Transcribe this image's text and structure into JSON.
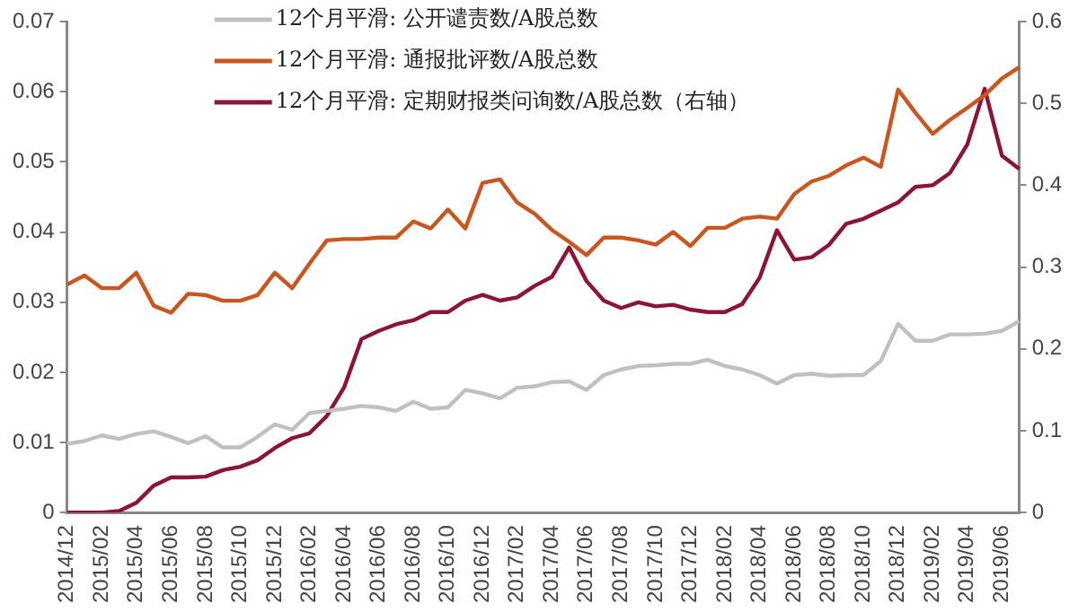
{
  "chart_data": {
    "type": "line",
    "categories": [
      "2014/12",
      null,
      "2015/02",
      null,
      "2015/04",
      null,
      "2015/06",
      null,
      "2015/08",
      null,
      "2015/10",
      null,
      "2015/12",
      null,
      "2016/02",
      null,
      "2016/04",
      null,
      "2016/06",
      null,
      "2016/08",
      null,
      "2016/10",
      null,
      "2016/12",
      null,
      "2017/02",
      null,
      "2017/04",
      null,
      "2017/06",
      null,
      "2017/08",
      null,
      "2017/10",
      null,
      "2017/12",
      null,
      "2018/02",
      null,
      "2018/04",
      null,
      "2018/06",
      null,
      "2018/08",
      null,
      "2018/10",
      null,
      "2018/12",
      null,
      "2019/02",
      null,
      "2019/04",
      null,
      "2019/06",
      null
    ],
    "series": [
      {
        "name": "12个月平滑: 公开谴责数/A股总数",
        "color": "#c0c0c0",
        "values": [
          0.0098,
          0.0102,
          0.011,
          0.0105,
          0.0112,
          0.0116,
          0.0108,
          0.0099,
          0.0109,
          0.0093,
          0.0093,
          0.0108,
          0.0126,
          0.0118,
          0.0142,
          0.0145,
          0.0148,
          0.0152,
          0.015,
          0.0145,
          0.0158,
          0.0148,
          0.015,
          0.0175,
          0.017,
          0.0163,
          0.0178,
          0.018,
          0.0186,
          0.0187,
          0.0175,
          0.0196,
          0.0204,
          0.0209,
          0.021,
          0.0212,
          0.0212,
          0.0218,
          0.0209,
          0.0204,
          0.0196,
          0.0184,
          0.0196,
          0.0198,
          0.0195,
          0.0196,
          0.0196,
          0.0216,
          0.0269,
          0.0245,
          0.0245,
          0.0254,
          0.0254,
          0.0255,
          0.0259,
          0.0273
        ]
      },
      {
        "name": "12个月平滑: 通报批评数/A股总数",
        "color": "#c8561e",
        "values": [
          0.0325,
          0.0338,
          0.032,
          0.032,
          0.0342,
          0.0295,
          0.0285,
          0.0312,
          0.031,
          0.0302,
          0.0302,
          0.031,
          0.0342,
          0.032,
          0.0355,
          0.0388,
          0.039,
          0.039,
          0.0392,
          0.0392,
          0.0415,
          0.0405,
          0.0432,
          0.0405,
          0.047,
          0.0475,
          0.0442,
          0.0426,
          0.0403,
          0.0386,
          0.0367,
          0.0392,
          0.0392,
          0.0388,
          0.0382,
          0.04,
          0.038,
          0.0406,
          0.0406,
          0.0419,
          0.0422,
          0.0419,
          0.0454,
          0.0472,
          0.048,
          0.0495,
          0.0506,
          0.0493,
          0.0603,
          0.057,
          0.054,
          0.056,
          0.0577,
          0.0595,
          0.0619,
          0.0635
        ]
      },
      {
        "name": "12个月平滑: 定期财报类问询数/A股总数（右轴）",
        "color": "#8b1538",
        "axis": "y2",
        "values": [
          0,
          0,
          0,
          0.002,
          0.012,
          0.033,
          0.043,
          0.043,
          0.044,
          0.052,
          0.056,
          0.064,
          0.079,
          0.091,
          0.097,
          0.118,
          0.153,
          0.212,
          0.222,
          0.23,
          0.235,
          0.245,
          0.245,
          0.259,
          0.266,
          0.259,
          0.263,
          0.277,
          0.288,
          0.324,
          0.283,
          0.259,
          0.25,
          0.257,
          0.252,
          0.254,
          0.248,
          0.245,
          0.245,
          0.255,
          0.287,
          0.345,
          0.309,
          0.312,
          0.327,
          0.353,
          0.359,
          0.369,
          0.379,
          0.398,
          0.4,
          0.415,
          0.45,
          0.518,
          0.436,
          0.42
        ]
      }
    ],
    "ylim": [
      0,
      0.07
    ],
    "yticks": [
      0,
      0.01,
      0.02,
      0.03,
      0.04,
      0.05,
      0.06,
      0.07
    ],
    "y2lim": [
      0,
      0.6
    ],
    "y2ticks": [
      0,
      0.1,
      0.2,
      0.3,
      0.4,
      0.5,
      0.6
    ],
    "grid": false,
    "legend": "top",
    "marker": "none",
    "line_style": "solid"
  }
}
